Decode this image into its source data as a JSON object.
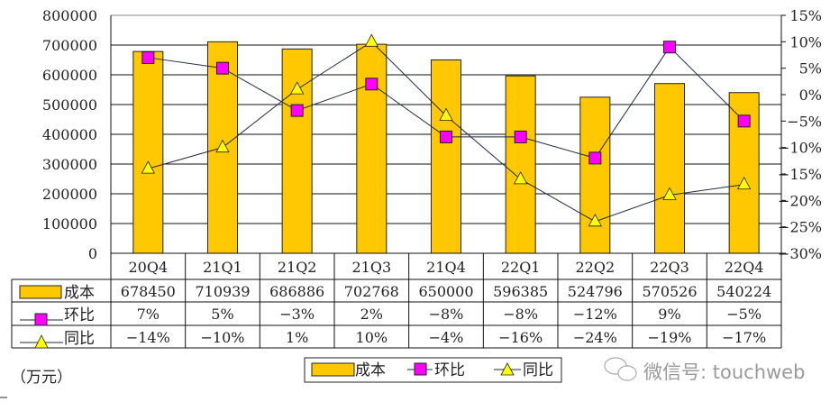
{
  "chart_data": {
    "type": "bar",
    "title": "",
    "unit_label": "（万元）",
    "categories": [
      "20Q4",
      "21Q1",
      "21Q2",
      "21Q3",
      "21Q4",
      "22Q1",
      "22Q2",
      "22Q3",
      "22Q4"
    ],
    "series": [
      {
        "name": "成本",
        "type": "bar",
        "axis": "left",
        "values": [
          678450,
          710939,
          686886,
          702768,
          650000,
          596385,
          524796,
          570526,
          540224
        ],
        "labels": [
          "678450",
          "710939",
          "686886",
          "702768",
          "650000",
          "596385",
          "524796",
          "570526",
          "540224"
        ]
      },
      {
        "name": "环比",
        "type": "line",
        "axis": "right",
        "marker": "square",
        "values": [
          7,
          5,
          -3,
          2,
          -8,
          -8,
          -12,
          9,
          -5
        ],
        "labels": [
          "7%",
          "5%",
          "−3%",
          "2%",
          "−8%",
          "−8%",
          "−12%",
          "9%",
          "−5%"
        ]
      },
      {
        "name": "同比",
        "type": "line",
        "axis": "right",
        "marker": "triangle",
        "values": [
          -14,
          -10,
          1,
          10,
          -4,
          -16,
          -24,
          -19,
          -17
        ],
        "labels": [
          "−14%",
          "−10%",
          "1%",
          "10%",
          "−4%",
          "−16%",
          "−24%",
          "−19%",
          "−17%"
        ]
      }
    ],
    "y_left": {
      "min": 0,
      "max": 800000,
      "step": 100000,
      "ticks": [
        "0",
        "100000",
        "200000",
        "300000",
        "400000",
        "500000",
        "600000",
        "700000",
        "800000"
      ]
    },
    "y_right": {
      "min": -30,
      "max": 15,
      "step": 5,
      "ticks": [
        "−30%",
        "−25%",
        "−20%",
        "−15%",
        "−10%",
        "−5%",
        "0%",
        "5%",
        "10%",
        "15%"
      ]
    },
    "grid": true,
    "legend": {
      "position": "bottom-center",
      "entries": [
        "成本",
        "环比",
        "同比"
      ]
    },
    "data_table": true
  },
  "colors": {
    "bar": "#FFC800",
    "square": "#FF00FF",
    "triangle": "#FFFF00",
    "line": "#1F2A44"
  },
  "watermark": "微信号: touchweb"
}
